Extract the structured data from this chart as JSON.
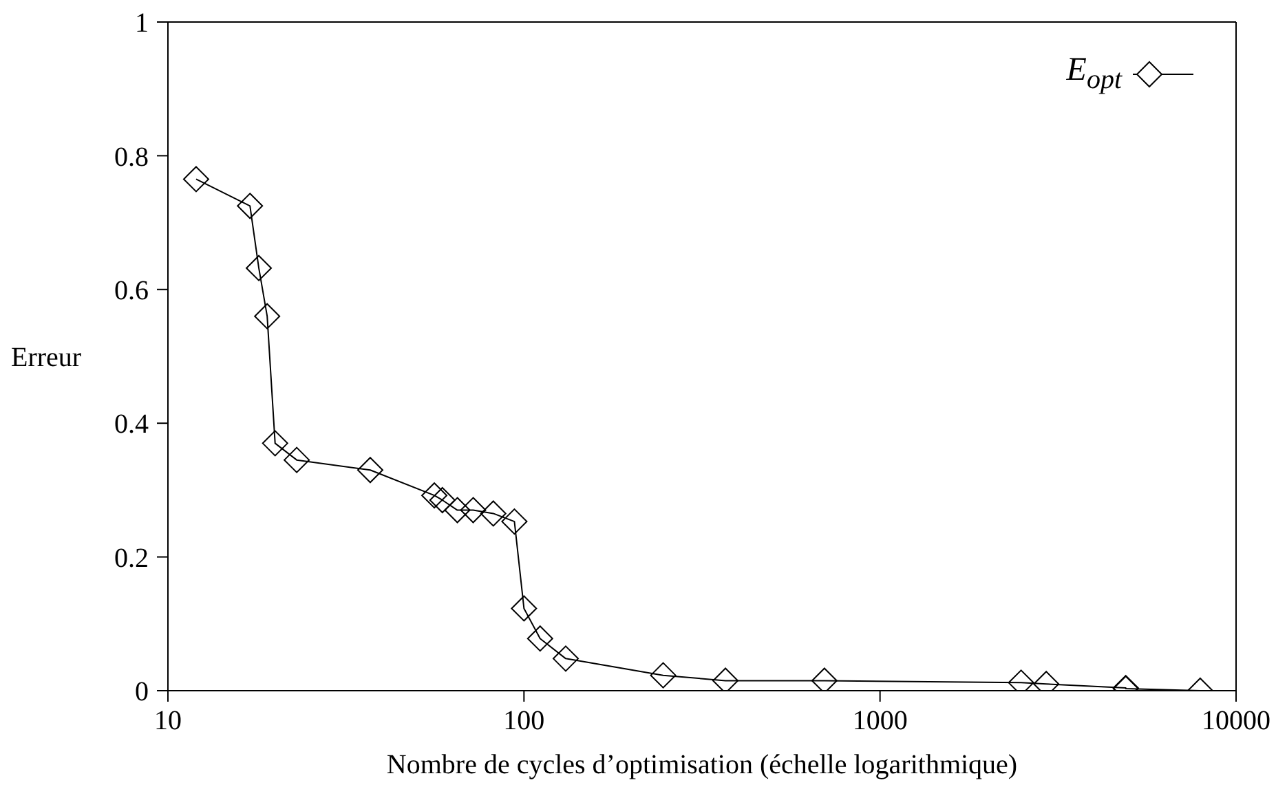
{
  "chart_data": {
    "type": "line",
    "xlabel": "Nombre de cycles d’optimisation (échelle logarithmique)",
    "ylabel": "Erreur",
    "log": "x",
    "xlim": [
      10,
      10000
    ],
    "xticks": [
      10,
      100,
      1000,
      10000
    ],
    "ylim": [
      0,
      1
    ],
    "yticks": [
      0,
      0.2,
      0.4,
      0.6,
      0.8,
      1
    ],
    "legend": "top right",
    "marker": "diamond",
    "line_style": "solid",
    "series": [
      {
        "name": "E$_{opt}$",
        "color": "#000000",
        "x": [
          12,
          17,
          18,
          19,
          20,
          23,
          37,
          56,
          59,
          65,
          72,
          82,
          94,
          100,
          111,
          131,
          246,
          368,
          698,
          2490,
          2930,
          4900,
          4900,
          7930
        ],
        "values": [
          0.765,
          0.725,
          0.632,
          0.56,
          0.37,
          0.345,
          0.33,
          0.292,
          0.285,
          0.27,
          0.27,
          0.265,
          0.253,
          0.123,
          0.078,
          0.048,
          0.023,
          0.015,
          0.015,
          0.012,
          0.01,
          0.004,
          0.003,
          0.0
        ]
      }
    ]
  }
}
